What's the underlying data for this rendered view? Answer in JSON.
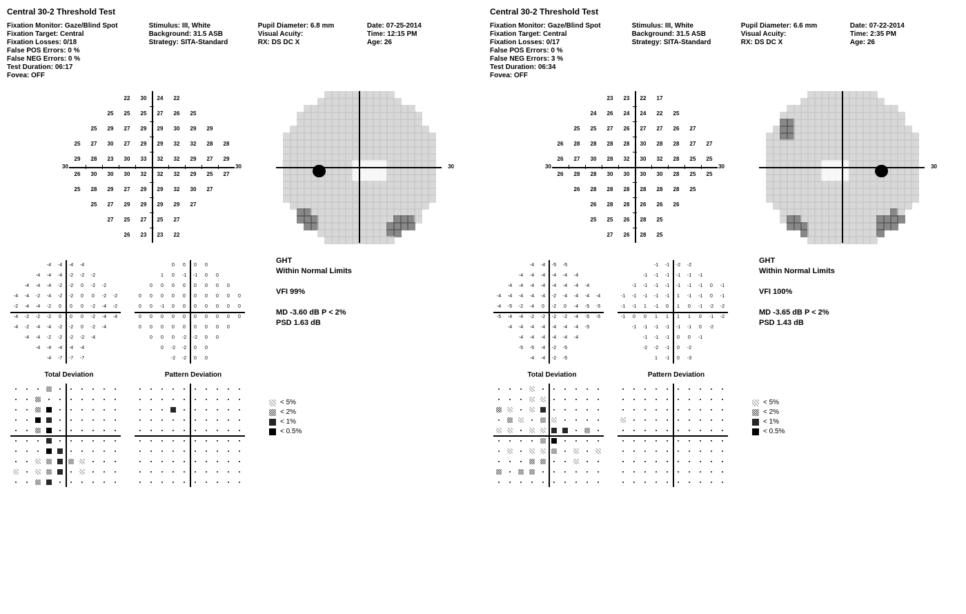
{
  "left": {
    "title": "Central 30-2 Threshold Test",
    "meta": {
      "c1": [
        "Fixation Monitor: Gaze/Blind Spot",
        "Fixation Target: Central",
        "Fixation Losses: 0/18",
        "False POS Errors: 0 %",
        "False NEG Errors: 0 %",
        "Test Duration: 06:17",
        "",
        "Fovea: OFF"
      ],
      "c2": [
        "Stimulus: III, White",
        "Background: 31.5 ASB",
        "Strategy: SITA-Standard"
      ],
      "c3": [
        "Pupil Diameter: 6.8 mm",
        "Visual Acuity:",
        "RX:    DS    DC  X"
      ],
      "c4": [
        "Date: 07-25-2014",
        "Time: 12:15 PM",
        "Age: 26"
      ]
    },
    "edge_label": "30",
    "threshold_rows": [
      [
        null,
        null,
        null,
        22,
        30,
        24,
        22,
        null,
        null,
        null
      ],
      [
        null,
        null,
        25,
        25,
        25,
        27,
        26,
        25,
        null,
        null
      ],
      [
        null,
        25,
        29,
        27,
        29,
        29,
        30,
        29,
        29,
        null
      ],
      [
        25,
        27,
        30,
        27,
        29,
        29,
        32,
        32,
        28,
        28
      ],
      [
        29,
        28,
        23,
        30,
        33,
        32,
        32,
        29,
        27,
        29
      ],
      [
        26,
        30,
        30,
        30,
        32,
        32,
        32,
        29,
        25,
        27
      ],
      [
        25,
        28,
        29,
        27,
        29,
        29,
        32,
        30,
        27,
        null
      ],
      [
        null,
        25,
        27,
        29,
        29,
        29,
        29,
        27,
        null,
        null
      ],
      [
        null,
        null,
        27,
        25,
        27,
        25,
        27,
        null,
        null,
        null
      ],
      [
        null,
        null,
        null,
        26,
        23,
        23,
        22,
        null,
        null,
        null
      ]
    ],
    "grayscale": {
      "blind_spot": {
        "x": -0.5,
        "y": -0.05,
        "r": 0.08
      },
      "light_zone": {
        "x": 0.15,
        "y": -0.02,
        "w": 0.4,
        "h": 0.25
      },
      "dark_corners": [
        {
          "x": 0.55,
          "y": -0.8,
          "r": 0.18
        },
        {
          "x": -0.7,
          "y": -0.7,
          "r": 0.15
        }
      ]
    },
    "total_dev_rows": [
      [
        null,
        null,
        null,
        -4,
        -4,
        -4,
        -4,
        null,
        null,
        null
      ],
      [
        null,
        null,
        -4,
        -4,
        -4,
        -2,
        -2,
        -2,
        null,
        null
      ],
      [
        null,
        -4,
        -4,
        -4,
        -2,
        -2,
        0,
        -2,
        -2,
        null
      ],
      [
        -4,
        -4,
        -2,
        -4,
        -2,
        -2,
        0,
        0,
        -2,
        -2
      ],
      [
        -2,
        -4,
        -4,
        -2,
        0,
        0,
        0,
        -2,
        -4,
        -2
      ],
      [
        -4,
        -2,
        -2,
        -2,
        0,
        0,
        0,
        -2,
        -4,
        -4
      ],
      [
        -4,
        -2,
        -4,
        -4,
        -2,
        -2,
        0,
        -2,
        -4,
        null
      ],
      [
        null,
        -4,
        -4,
        -2,
        -2,
        -2,
        -2,
        -4,
        null,
        null
      ],
      [
        null,
        null,
        -4,
        -4,
        -4,
        -4,
        -4,
        null,
        null,
        null
      ],
      [
        null,
        null,
        null,
        -4,
        -7,
        -7,
        -7,
        null,
        null,
        null
      ]
    ],
    "pattern_dev_rows": [
      [
        null,
        null,
        null,
        0,
        0,
        0,
        0,
        null,
        null,
        null
      ],
      [
        null,
        null,
        1,
        0,
        -1,
        -1,
        0,
        0,
        null,
        null
      ],
      [
        null,
        0,
        0,
        0,
        0,
        0,
        0,
        0,
        0,
        null
      ],
      [
        0,
        0,
        0,
        0,
        0,
        0,
        0,
        0,
        0,
        0
      ],
      [
        0,
        0,
        -1,
        0,
        0,
        0,
        0,
        0,
        0,
        0
      ],
      [
        0,
        0,
        0,
        0,
        0,
        0,
        0,
        0,
        0,
        0
      ],
      [
        0,
        0,
        0,
        0,
        0,
        0,
        0,
        0,
        0,
        null
      ],
      [
        null,
        0,
        0,
        0,
        -2,
        -2,
        0,
        0,
        null,
        null
      ],
      [
        null,
        null,
        0,
        -2,
        -2,
        0,
        0,
        null,
        null,
        null
      ],
      [
        null,
        null,
        null,
        -2,
        -2,
        0,
        0,
        null,
        null,
        null
      ]
    ],
    "stats": {
      "ght_l1": "GHT",
      "ght_l2": "Within Normal Limits",
      "vfi": "VFI   99%",
      "md": "MD   -3.60 dB P < 2%",
      "psd": "PSD   1.63 dB"
    },
    "total_prob_title": "Total Deviation",
    "pattern_prob_title": "Pattern Deviation",
    "total_prob": [
      [
        ".",
        ".",
        ".",
        "2",
        ".",
        ".",
        ".",
        ".",
        ".",
        "."
      ],
      [
        ".",
        ".",
        "2",
        ".",
        ".",
        ".",
        ".",
        ".",
        ".",
        "."
      ],
      [
        ".",
        ".",
        "2",
        "05",
        ".",
        ".",
        ".",
        ".",
        ".",
        "."
      ],
      [
        ".",
        ".",
        "05",
        "1",
        ".",
        ".",
        ".",
        ".",
        ".",
        "."
      ],
      [
        ".",
        ".",
        "2",
        "05",
        ".",
        ".",
        ".",
        ".",
        ".",
        "."
      ],
      [
        ".",
        ".",
        ".",
        "1",
        ".",
        ".",
        ".",
        ".",
        ".",
        "."
      ],
      [
        ".",
        ".",
        ".",
        "05",
        "1",
        ".",
        ".",
        ".",
        ".",
        "."
      ],
      [
        ".",
        ".",
        "5",
        "2",
        "1",
        "2",
        "5",
        ".",
        ".",
        "."
      ],
      [
        "5",
        ".",
        "5",
        "2",
        "1",
        ".",
        "5",
        ".",
        ".",
        "."
      ],
      [
        ".",
        ".",
        "2",
        "1",
        ".",
        ".",
        ".",
        ".",
        ".",
        "."
      ]
    ],
    "pattern_prob": [
      [
        ".",
        ".",
        ".",
        ".",
        ".",
        ".",
        ".",
        ".",
        ".",
        "."
      ],
      [
        ".",
        ".",
        ".",
        ".",
        ".",
        ".",
        ".",
        ".",
        ".",
        "."
      ],
      [
        ".",
        ".",
        ".",
        "1",
        ".",
        ".",
        ".",
        ".",
        ".",
        "."
      ],
      [
        ".",
        ".",
        ".",
        ".",
        ".",
        ".",
        ".",
        ".",
        ".",
        "."
      ],
      [
        ".",
        ".",
        ".",
        ".",
        ".",
        ".",
        ".",
        ".",
        ".",
        "."
      ],
      [
        ".",
        ".",
        ".",
        ".",
        ".",
        ".",
        ".",
        ".",
        ".",
        "."
      ],
      [
        ".",
        ".",
        ".",
        ".",
        ".",
        ".",
        ".",
        ".",
        ".",
        "."
      ],
      [
        ".",
        ".",
        ".",
        ".",
        ".",
        ".",
        ".",
        ".",
        ".",
        "."
      ],
      [
        ".",
        ".",
        ".",
        ".",
        ".",
        ".",
        ".",
        ".",
        ".",
        "."
      ],
      [
        ".",
        ".",
        ".",
        ".",
        ".",
        ".",
        ".",
        ".",
        ".",
        "."
      ]
    ],
    "legend": [
      {
        "sym": "5",
        "label": "< 5%"
      },
      {
        "sym": "2",
        "label": "< 2%"
      },
      {
        "sym": "1",
        "label": "< 1%"
      },
      {
        "sym": "05",
        "label": "< 0.5%"
      }
    ]
  },
  "right": {
    "title": "Central 30-2 Threshold Test",
    "meta": {
      "c1": [
        "Fixation Monitor: Gaze/Blind Spot",
        "Fixation Target: Central",
        "Fixation Losses: 0/17",
        "False POS Errors: 0 %",
        "False NEG Errors: 3 %",
        "Test Duration: 06:34",
        "",
        "Fovea: OFF"
      ],
      "c2": [
        "Stimulus: III, White",
        "Background: 31.5 ASB",
        "Strategy: SITA-Standard"
      ],
      "c3": [
        "Pupil Diameter: 6.6 mm",
        "Visual Acuity:",
        "RX:   DS    DC  X"
      ],
      "c4": [
        "Date: 07-22-2014",
        "Time: 2:35 PM",
        "Age: 26"
      ]
    },
    "edge_label": "30",
    "threshold_rows": [
      [
        null,
        null,
        null,
        23,
        23,
        22,
        17,
        null,
        null,
        null
      ],
      [
        null,
        null,
        24,
        26,
        24,
        24,
        22,
        25,
        null,
        null
      ],
      [
        null,
        25,
        25,
        27,
        26,
        27,
        27,
        26,
        27,
        null
      ],
      [
        26,
        28,
        28,
        28,
        28,
        30,
        28,
        28,
        27,
        27
      ],
      [
        26,
        27,
        30,
        28,
        32,
        30,
        32,
        28,
        25,
        25
      ],
      [
        26,
        28,
        28,
        30,
        30,
        30,
        30,
        28,
        25,
        25
      ],
      [
        null,
        26,
        28,
        28,
        28,
        28,
        28,
        28,
        25,
        null
      ],
      [
        null,
        null,
        26,
        28,
        28,
        26,
        26,
        26,
        null,
        null
      ],
      [
        null,
        null,
        25,
        25,
        26,
        28,
        25,
        null,
        null,
        null
      ],
      [
        null,
        null,
        null,
        27,
        26,
        28,
        25,
        null,
        null,
        null
      ]
    ],
    "grayscale": {
      "blind_spot": {
        "x": 0.5,
        "y": -0.05,
        "r": 0.08
      },
      "light_zone": {
        "x": -0.05,
        "y": -0.02,
        "w": 0.35,
        "h": 0.3
      },
      "dark_corners": [
        {
          "x": 0.65,
          "y": -0.75,
          "r": 0.2
        },
        {
          "x": -0.6,
          "y": -0.75,
          "r": 0.15
        },
        {
          "x": -0.7,
          "y": 0.5,
          "r": 0.12
        }
      ]
    },
    "total_dev_rows": [
      [
        null,
        null,
        null,
        -4,
        -4,
        -5,
        -5,
        null,
        null,
        null
      ],
      [
        null,
        null,
        -4,
        -4,
        -4,
        -4,
        -4,
        -4,
        null,
        null
      ],
      [
        null,
        -4,
        -4,
        -4,
        -4,
        -4,
        -4,
        -4,
        -4,
        null
      ],
      [
        -4,
        -4,
        -4,
        -4,
        -4,
        -2,
        -4,
        -4,
        -4,
        -4
      ],
      [
        -4,
        -5,
        -2,
        -4,
        0,
        -2,
        0,
        -4,
        -5,
        -5
      ],
      [
        -5,
        -4,
        -4,
        -2,
        -2,
        -2,
        -2,
        -4,
        -5,
        -5
      ],
      [
        null,
        -4,
        -4,
        -4,
        -4,
        -4,
        -4,
        -4,
        -5,
        null
      ],
      [
        null,
        null,
        -4,
        -4,
        -4,
        -4,
        -4,
        -4,
        null,
        null
      ],
      [
        null,
        null,
        -5,
        -5,
        -4,
        -2,
        -5,
        null,
        null,
        null
      ],
      [
        null,
        null,
        null,
        -4,
        -4,
        -2,
        -5,
        null,
        null,
        null
      ]
    ],
    "pattern_dev_rows": [
      [
        null,
        null,
        null,
        -1,
        -1,
        -2,
        -2,
        null,
        null,
        null
      ],
      [
        null,
        null,
        -1,
        -1,
        -1,
        -1,
        -1,
        -1,
        null,
        null
      ],
      [
        null,
        -1,
        -1,
        -1,
        -1,
        -1,
        -1,
        -1,
        0,
        -1
      ],
      [
        -1,
        -1,
        -1,
        -1,
        -1,
        1,
        -1,
        -1,
        0,
        -1
      ],
      [
        -1,
        -1,
        1,
        -1,
        0,
        1,
        0,
        -1,
        -2,
        -2
      ],
      [
        -1,
        0,
        0,
        1,
        1,
        1,
        1,
        0,
        -1,
        -2
      ],
      [
        null,
        -1,
        -1,
        -1,
        -1,
        -1,
        -1,
        0,
        -2,
        null
      ],
      [
        null,
        null,
        -1,
        -1,
        -1,
        0,
        0,
        -1,
        null,
        null
      ],
      [
        null,
        null,
        -2,
        -2,
        -1,
        0,
        -2,
        null,
        null,
        null
      ],
      [
        null,
        null,
        null,
        1,
        -1,
        0,
        -3,
        null,
        null,
        null
      ]
    ],
    "stats": {
      "ght_l1": "GHT",
      "ght_l2": "Within Normal Limits",
      "vfi": "VFI   100%",
      "md": "MD   -3.65 dB P < 2%",
      "psd": "PSD   1.43 dB"
    },
    "total_prob_title": "Total Deviation",
    "pattern_prob_title": "Pattern Deviation",
    "total_prob": [
      [
        ".",
        ".",
        ".",
        "5",
        ".",
        ".",
        ".",
        ".",
        ".",
        "."
      ],
      [
        ".",
        ".",
        ".",
        "5",
        "5",
        ".",
        ".",
        ".",
        ".",
        "."
      ],
      [
        "2",
        "5",
        ".",
        "5",
        "1",
        ".",
        ".",
        ".",
        ".",
        "."
      ],
      [
        ".",
        "2",
        "5",
        ".",
        "2",
        "5",
        ".",
        ".",
        ".",
        "."
      ],
      [
        "5",
        "5",
        ".",
        "5",
        "5",
        "1",
        "1",
        ".",
        "2",
        "."
      ],
      [
        ".",
        ".",
        ".",
        ".",
        "2",
        "05",
        ".",
        ".",
        ".",
        "."
      ],
      [
        ".",
        "5",
        ".",
        "5",
        "5",
        "2",
        ".",
        "5",
        ".",
        "5"
      ],
      [
        ".",
        ".",
        ".",
        "2",
        "2",
        ".",
        ".",
        "5",
        ".",
        "."
      ],
      [
        "2",
        ".",
        "2",
        "2",
        ".",
        ".",
        ".",
        ".",
        ".",
        "."
      ],
      [
        ".",
        ".",
        ".",
        ".",
        ".",
        ".",
        ".",
        ".",
        ".",
        "."
      ]
    ],
    "pattern_prob": [
      [
        ".",
        ".",
        ".",
        ".",
        ".",
        ".",
        ".",
        ".",
        ".",
        "."
      ],
      [
        ".",
        ".",
        ".",
        ".",
        ".",
        ".",
        ".",
        ".",
        ".",
        "."
      ],
      [
        ".",
        ".",
        ".",
        ".",
        ".",
        ".",
        ".",
        ".",
        ".",
        "."
      ],
      [
        "5",
        ".",
        ".",
        ".",
        ".",
        ".",
        ".",
        ".",
        ".",
        "."
      ],
      [
        ".",
        ".",
        ".",
        ".",
        ".",
        ".",
        ".",
        ".",
        ".",
        "."
      ],
      [
        ".",
        ".",
        ".",
        ".",
        ".",
        ".",
        ".",
        ".",
        ".",
        "."
      ],
      [
        ".",
        ".",
        ".",
        ".",
        ".",
        ".",
        ".",
        ".",
        ".",
        "."
      ],
      [
        ".",
        ".",
        ".",
        ".",
        ".",
        ".",
        ".",
        ".",
        ".",
        "."
      ],
      [
        ".",
        ".",
        ".",
        ".",
        ".",
        ".",
        ".",
        ".",
        ".",
        "."
      ],
      [
        ".",
        ".",
        ".",
        ".",
        ".",
        ".",
        ".",
        ".",
        ".",
        "."
      ]
    ],
    "legend": [
      {
        "sym": "5",
        "label": "< 5%"
      },
      {
        "sym": "2",
        "label": "< 2%"
      },
      {
        "sym": "1",
        "label": "< 1%"
      },
      {
        "sym": "05",
        "label": "< 0.5%"
      }
    ]
  },
  "colors": {
    "bg": "#ffffff",
    "text": "#000000",
    "axis": "#000000",
    "gs_light": "#f5f5f5",
    "gs_med": "#c8c8c8",
    "gs_dark": "#555555",
    "gs_black": "#000000"
  }
}
